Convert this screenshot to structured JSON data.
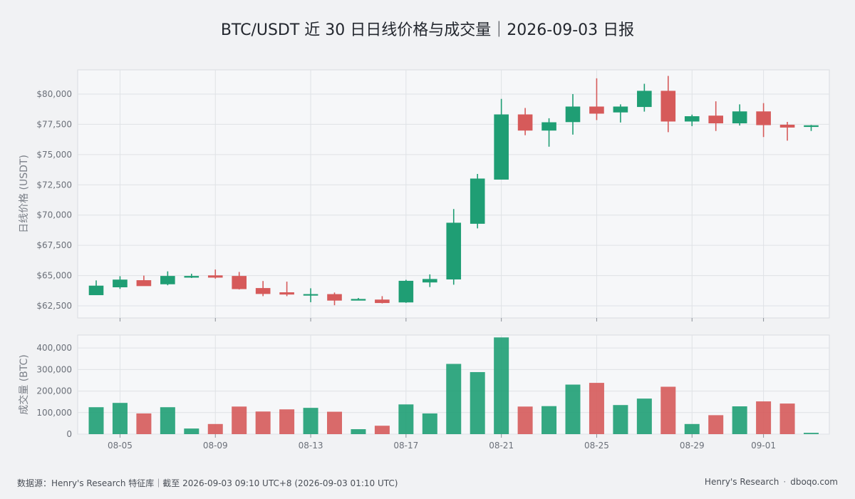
{
  "title": "BTC/USDT 近 30 日日线价格与成交量｜2026-09-03 日报",
  "footer": {
    "source": "数据源：Henry's Research 特征库｜截至 2026-09-03 09:10 UTC+8 (2026-09-03 01:10 UTC)",
    "brand": "Henry's Research",
    "separator": "·",
    "site": "dboqo.com"
  },
  "colors": {
    "up": "#1f9e74",
    "down": "#d65a5a",
    "grid": "#dfe2e6",
    "panel_bg": "#f6f7f9",
    "axis_text": "#6b7079"
  },
  "chart_data": [
    {
      "type": "candlestick",
      "ylabel": "日线价格 (USDT)",
      "ylim": [
        61500,
        82000
      ],
      "yticks": [
        62500,
        65000,
        67500,
        70000,
        72500,
        75000,
        77500,
        80000
      ],
      "ytick_labels": [
        "$62,500",
        "$65,000",
        "$67,500",
        "$70,000",
        "$72,500",
        "$75,000",
        "$77,500",
        "$80,000"
      ],
      "grid": true,
      "dates": [
        "08-04",
        "08-05",
        "08-06",
        "08-07",
        "08-08",
        "08-09",
        "08-10",
        "08-11",
        "08-12",
        "08-13",
        "08-14",
        "08-15",
        "08-16",
        "08-17",
        "08-18",
        "08-19",
        "08-20",
        "08-21",
        "08-22",
        "08-23",
        "08-24",
        "08-25",
        "08-26",
        "08-27",
        "08-28",
        "08-29",
        "08-30",
        "08-31",
        "09-01",
        "09-02",
        "09-03"
      ],
      "ohlc": [
        [
          63400,
          64600,
          63400,
          64150
        ],
        [
          64050,
          64950,
          63900,
          64650
        ],
        [
          64600,
          65000,
          64150,
          64150
        ],
        [
          64300,
          65350,
          64200,
          64950
        ],
        [
          64850,
          65150,
          64800,
          64950
        ],
        [
          65000,
          65500,
          64750,
          64850
        ],
        [
          64950,
          65300,
          63850,
          63900
        ],
        [
          63950,
          64550,
          63300,
          63500
        ],
        [
          63600,
          64500,
          63300,
          63450
        ],
        [
          63450,
          63950,
          62800,
          63450
        ],
        [
          63450,
          63600,
          62550,
          62950
        ],
        [
          62950,
          63150,
          62950,
          63050
        ],
        [
          63000,
          63300,
          62700,
          62750
        ],
        [
          62800,
          64650,
          62750,
          64550
        ],
        [
          64450,
          65100,
          64050,
          64700
        ],
        [
          64700,
          70500,
          64250,
          69350
        ],
        [
          69300,
          73400,
          68900,
          73000
        ],
        [
          72950,
          79600,
          72950,
          78300
        ],
        [
          78300,
          78850,
          76600,
          77000
        ],
        [
          77000,
          78000,
          75650,
          77650
        ],
        [
          77700,
          80000,
          76650,
          78950
        ],
        [
          78950,
          81300,
          77850,
          78400
        ],
        [
          78500,
          79150,
          77650,
          78950
        ],
        [
          78950,
          80850,
          78550,
          80250
        ],
        [
          80250,
          81500,
          76850,
          77750
        ],
        [
          77750,
          78300,
          77350,
          78150
        ],
        [
          78200,
          79400,
          76950,
          77600
        ],
        [
          77600,
          79150,
          77400,
          78550
        ],
        [
          78550,
          79250,
          76450,
          77450
        ],
        [
          77450,
          77700,
          76150,
          77250
        ],
        [
          77300,
          77450,
          76950,
          77400
        ]
      ]
    },
    {
      "type": "bar",
      "ylabel": "成交量 (BTC)",
      "ylim": [
        0,
        460000
      ],
      "yticks": [
        0,
        100000,
        200000,
        300000,
        400000
      ],
      "ytick_labels": [
        "0",
        "100,000",
        "200,000",
        "300,000",
        "400,000"
      ],
      "grid": true,
      "x_tick_labels": [
        "08-05",
        "08-09",
        "08-13",
        "08-17",
        "08-21",
        "08-25",
        "08-29",
        "09-01"
      ],
      "x_tick_dates": [
        "08-05",
        "08-09",
        "08-13",
        "08-17",
        "08-21",
        "08-25",
        "08-29",
        "09-01"
      ],
      "volume": [
        125000,
        145000,
        96000,
        125000,
        26000,
        47000,
        128000,
        105000,
        115000,
        122000,
        104000,
        23000,
        39000,
        138000,
        96000,
        326000,
        288000,
        449000,
        128000,
        130000,
        230000,
        238000,
        135000,
        165000,
        220000,
        47000,
        88000,
        129000,
        152000,
        142000,
        6000
      ]
    }
  ]
}
